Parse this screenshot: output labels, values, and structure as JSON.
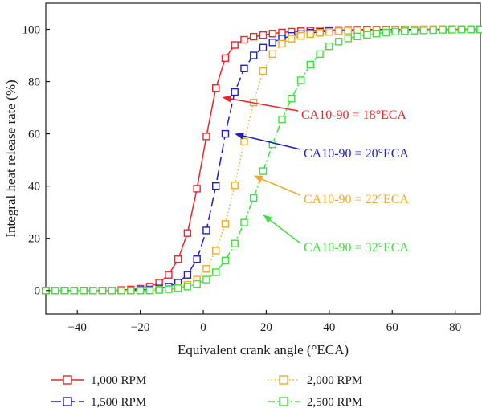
{
  "chart_data": {
    "type": "line",
    "xlabel": "Equivalent crank angle (°ECA)",
    "ylabel": "Integral heat release rate (%)",
    "xlim": [
      -50,
      88
    ],
    "ylim": [
      -9,
      110
    ],
    "xticks": [
      -40,
      -20,
      0,
      20,
      40,
      60,
      80
    ],
    "yticks": [
      0,
      20,
      40,
      60,
      80,
      100
    ],
    "grid": false,
    "legend_position": "bottom",
    "series": [
      {
        "name": "1,000 RPM",
        "color": "#e8262b",
        "dash": "solid",
        "x": [
          -50,
          -47,
          -44,
          -41,
          -38,
          -35,
          -32,
          -29,
          -26,
          -23,
          -20,
          -17,
          -14,
          -11,
          -8,
          -5,
          -2,
          1,
          4,
          7,
          10,
          13,
          16,
          19,
          22,
          25,
          28,
          31,
          34,
          37,
          40,
          43,
          46,
          49,
          52,
          55,
          58,
          61,
          64,
          67,
          70,
          73,
          76,
          79,
          82,
          85,
          88
        ],
        "y": [
          0,
          0,
          0,
          0,
          0,
          0,
          0,
          0,
          0.2,
          0.4,
          0.7,
          1.5,
          3,
          6,
          12,
          22,
          39,
          59,
          77.5,
          89,
          94,
          96,
          97.2,
          97.8,
          98.4,
          98.8,
          99.1,
          99.3,
          99.5,
          99.6,
          99.7,
          99.75,
          99.8,
          99.85,
          99.9,
          99.92,
          99.94,
          99.95,
          99.96,
          99.97,
          99.98,
          99.98,
          99.99,
          99.99,
          100,
          100,
          100
        ]
      },
      {
        "name": "1,500 RPM",
        "color": "#1f1fbf",
        "dash": "longdash",
        "x": [
          -50,
          -47,
          -44,
          -41,
          -38,
          -35,
          -32,
          -29,
          -26,
          -23,
          -20,
          -17,
          -14,
          -11,
          -8,
          -5,
          -2,
          1,
          4,
          7,
          10,
          13,
          16,
          19,
          22,
          25,
          28,
          31,
          34,
          37,
          40,
          43,
          46,
          49,
          52,
          55,
          58,
          61,
          64,
          67,
          70,
          73,
          76,
          79,
          82,
          85,
          88
        ],
        "y": [
          0,
          0,
          0,
          0,
          0,
          0,
          0,
          0,
          0,
          0,
          0.2,
          0.4,
          0.8,
          1.5,
          3,
          6,
          12,
          23,
          40,
          60,
          76,
          85,
          90,
          93,
          95,
          96.5,
          97.5,
          98.2,
          98.7,
          99,
          99.3,
          99.5,
          99.6,
          99.7,
          99.8,
          99.85,
          99.9,
          99.93,
          99.95,
          99.96,
          99.97,
          99.98,
          99.99,
          100,
          100,
          100,
          100
        ]
      },
      {
        "name": "2,000 RPM",
        "color": "#f0a92a",
        "dash": "dotted",
        "x": [
          -50,
          -47,
          -44,
          -41,
          -38,
          -35,
          -32,
          -29,
          -26,
          -23,
          -20,
          -17,
          -14,
          -11,
          -8,
          -5,
          -2,
          1,
          4,
          7,
          10,
          13,
          16,
          19,
          22,
          25,
          28,
          31,
          34,
          37,
          40,
          43,
          46,
          49,
          52,
          55,
          58,
          61,
          64,
          67,
          70,
          73,
          76,
          79,
          82,
          85,
          88
        ],
        "y": [
          0,
          0,
          0,
          0,
          0,
          0,
          0,
          0,
          0,
          0,
          0,
          0.1,
          0.3,
          0.6,
          1.2,
          2.2,
          4.2,
          8.3,
          15.3,
          25.5,
          40.3,
          57,
          72,
          84,
          90.5,
          94.5,
          96.4,
          97.5,
          98.2,
          98.7,
          99,
          99.3,
          99.5,
          99.6,
          99.7,
          99.8,
          99.85,
          99.9,
          99.93,
          99.95,
          99.96,
          99.97,
          99.98,
          99.99,
          100,
          100,
          100
        ]
      },
      {
        "name": "2,500 RPM",
        "color": "#3fe03f",
        "dash": "dashdot",
        "x": [
          -50,
          -47,
          -44,
          -41,
          -38,
          -35,
          -32,
          -29,
          -26,
          -23,
          -20,
          -17,
          -14,
          -11,
          -8,
          -5,
          -2,
          1,
          4,
          7,
          10,
          13,
          16,
          19,
          22,
          25,
          28,
          31,
          34,
          37,
          40,
          43,
          46,
          49,
          52,
          55,
          58,
          61,
          64,
          67,
          70,
          73,
          76,
          79,
          82,
          85,
          88
        ],
        "y": [
          0,
          0,
          0,
          0,
          0,
          0,
          0,
          0,
          0,
          0,
          0,
          0,
          0.2,
          0.5,
          0.9,
          1.5,
          2.5,
          4.2,
          7,
          11.5,
          18,
          26,
          35.5,
          45.7,
          56,
          65.5,
          73.5,
          80.5,
          86.5,
          90.5,
          93.5,
          95.3,
          96.5,
          97.3,
          97.9,
          98.4,
          98.8,
          99.1,
          99.3,
          99.5,
          99.6,
          99.7,
          99.8,
          99.85,
          99.9,
          99.95,
          100
        ]
      }
    ],
    "annotations": [
      {
        "text": "CA10-90 = 18°ECA",
        "color": "#e8262b",
        "arrow_to": [
          6,
          74
        ]
      },
      {
        "text": "CA10-90 = 20°ECA",
        "color": "#1f1fbf",
        "arrow_to": [
          10,
          60
        ]
      },
      {
        "text": "CA10-90 = 22°ECA",
        "color": "#f0a92a",
        "arrow_to": [
          16,
          44
        ]
      },
      {
        "text": "CA10-90 = 32°ECA",
        "color": "#3fe03f",
        "arrow_to": [
          19,
          29
        ]
      }
    ]
  }
}
